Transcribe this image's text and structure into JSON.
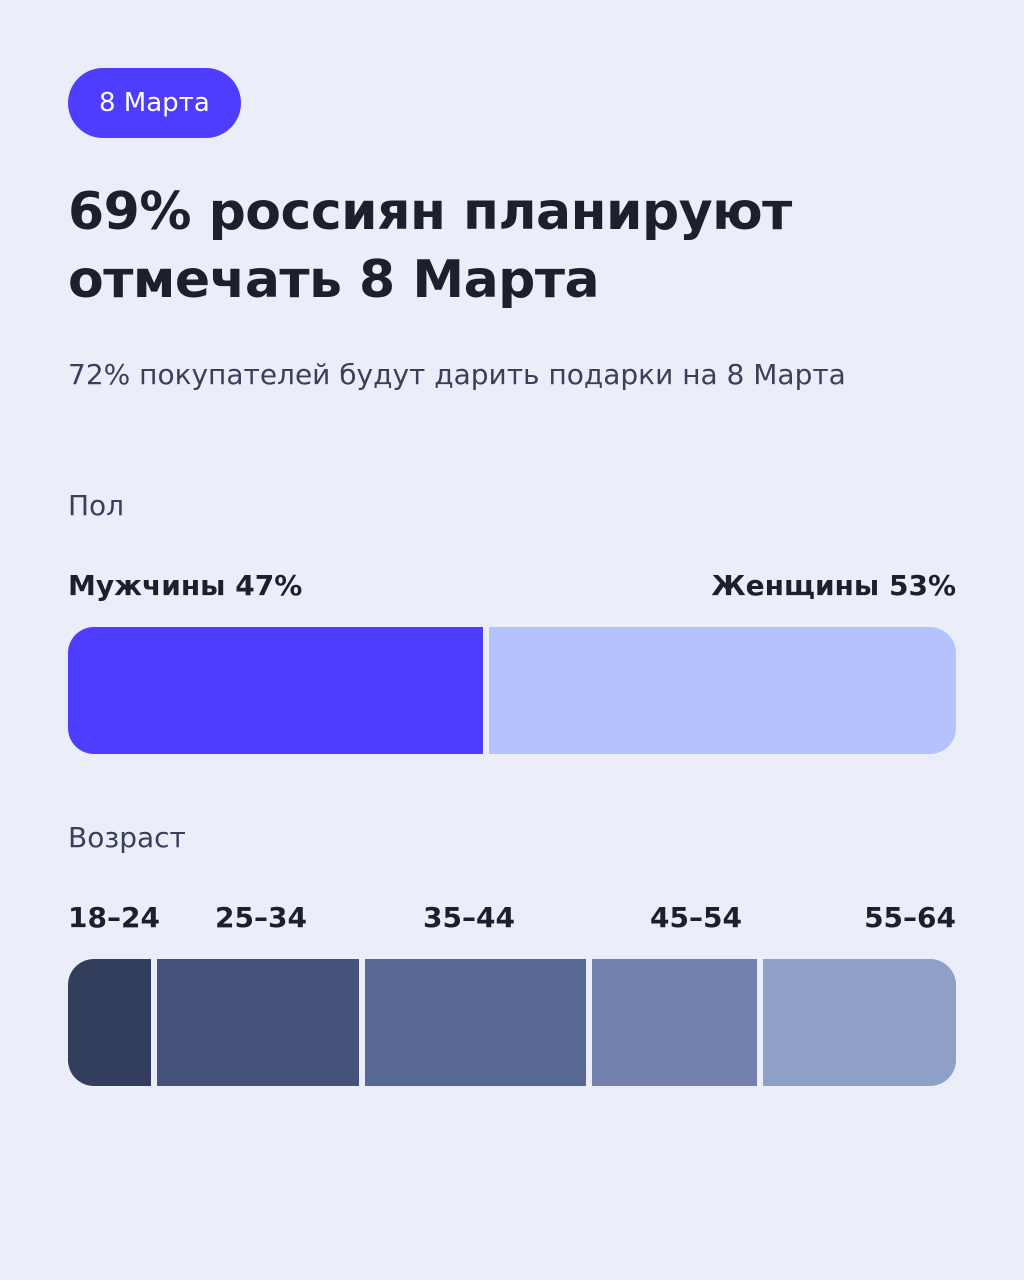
{
  "badge": {
    "label": "8 Марта",
    "color": "#4F3DFF"
  },
  "headline": "69% россиян планируют отмечать 8 Марта",
  "subtitle": "72% покупателей будут дарить подарки на 8 Марта",
  "chart_data": [
    {
      "type": "bar",
      "orientation": "horizontal-stacked",
      "title": "Пол",
      "categories": [
        "Мужчины",
        "Женщины"
      ],
      "values": [
        47,
        53
      ],
      "labels": [
        "Мужчины 47%",
        "Женщины 53%"
      ],
      "unit": "%",
      "colors": [
        "#4F3DFF",
        "#B4C2FD"
      ]
    },
    {
      "type": "bar",
      "orientation": "horizontal-stacked",
      "title": "Возраст",
      "categories": [
        "18–24",
        "25–34",
        "35–44",
        "45–54",
        "55–64"
      ],
      "values": [
        9,
        22,
        24,
        18,
        21
      ],
      "colors": [
        "#333D5C",
        "#45537A",
        "#576894",
        "#7281AD",
        "#8EA0C8"
      ]
    }
  ]
}
